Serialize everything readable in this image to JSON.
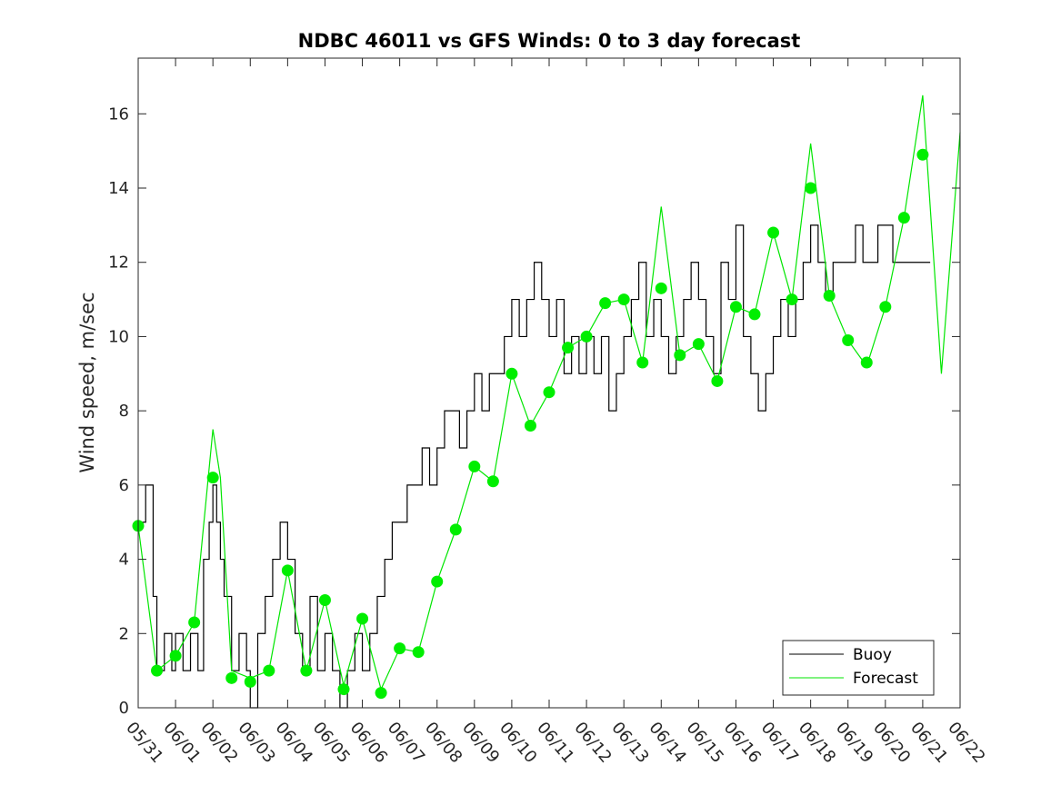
{
  "chart_data": {
    "type": "line",
    "title": "NDBC 46011 vs GFS Winds: 0 to 3 day forecast",
    "xlabel": "",
    "ylabel": "Wind speed, m/sec",
    "x_tick_labels": [
      "05/31",
      "06/01",
      "06/02",
      "06/03",
      "06/04",
      "06/05",
      "06/06",
      "06/07",
      "06/08",
      "06/09",
      "06/10",
      "06/11",
      "06/12",
      "06/13",
      "06/14",
      "06/15",
      "06/16",
      "06/17",
      "06/18",
      "06/19",
      "06/20",
      "06/21",
      "06/22"
    ],
    "y_ticks": [
      0,
      2,
      4,
      6,
      8,
      10,
      12,
      14,
      16
    ],
    "xlim": [
      0,
      22
    ],
    "ylim": [
      0,
      17.5
    ],
    "grid": false,
    "legend": {
      "position": "bottom-right",
      "entries": [
        {
          "label": "Buoy",
          "color": "#000000"
        },
        {
          "label": "Forecast",
          "color": "#00e600"
        }
      ]
    },
    "colors": {
      "buoy": "#000000",
      "forecast": "#00e600",
      "marker": "#00ee00"
    },
    "series": [
      {
        "name": "Buoy",
        "x": [
          0.0,
          0.2,
          0.4,
          0.5,
          0.7,
          0.9,
          1.0,
          1.2,
          1.4,
          1.6,
          1.75,
          1.9,
          2.0,
          2.1,
          2.2,
          2.3,
          2.5,
          2.7,
          2.9,
          3.0,
          3.2,
          3.4,
          3.6,
          3.8,
          4.0,
          4.2,
          4.4,
          4.6,
          4.8,
          5.0,
          5.2,
          5.4,
          5.6,
          5.8,
          6.0,
          6.2,
          6.4,
          6.6,
          6.8,
          7.0,
          7.2,
          7.4,
          7.6,
          7.8,
          8.0,
          8.2,
          8.4,
          8.6,
          8.8,
          9.0,
          9.2,
          9.4,
          9.6,
          9.8,
          10.0,
          10.2,
          10.4,
          10.6,
          10.8,
          11.0,
          11.2,
          11.4,
          11.6,
          11.8,
          12.0,
          12.2,
          12.4,
          12.6,
          12.8,
          13.0,
          13.2,
          13.4,
          13.6,
          13.8,
          14.0,
          14.2,
          14.4,
          14.6,
          14.8,
          15.0,
          15.2,
          15.4,
          15.6,
          15.8,
          16.0,
          16.2,
          16.4,
          16.6,
          16.8,
          17.0,
          17.2,
          17.4,
          17.6,
          17.8,
          18.0,
          18.2,
          18.4,
          18.6,
          18.8,
          19.0,
          19.2,
          19.4,
          19.6,
          19.8,
          20.0,
          20.2,
          20.4,
          20.6,
          20.8,
          21.0
        ],
        "values": [
          5,
          6,
          3,
          1,
          2,
          1,
          2,
          1,
          2,
          1,
          4,
          5,
          6,
          5,
          4,
          3,
          1,
          2,
          1,
          0,
          2,
          3,
          4,
          5,
          4,
          2,
          1,
          3,
          1,
          2,
          1,
          0,
          1,
          2,
          1,
          2,
          3,
          4,
          5,
          5,
          6,
          6,
          7,
          6,
          7,
          8,
          8,
          7,
          8,
          9,
          8,
          9,
          9,
          10,
          11,
          10,
          11,
          12,
          11,
          10,
          11,
          9,
          10,
          9,
          10,
          9,
          10,
          8,
          9,
          10,
          11,
          12,
          10,
          11,
          10,
          9,
          10,
          11,
          12,
          11,
          10,
          9,
          12,
          11,
          13,
          10,
          9,
          8,
          9,
          10,
          11,
          10,
          11,
          12,
          13,
          12,
          11,
          12,
          12,
          12,
          13,
          12,
          12,
          13,
          13,
          12,
          12,
          12,
          12,
          12
        ]
      },
      {
        "name": "Forecast",
        "x": [
          0.0,
          0.5,
          1.0,
          1.5,
          2.0,
          2.2,
          2.5,
          3.0,
          3.5,
          4.0,
          4.5,
          5.0,
          5.5,
          6.0,
          6.5,
          7.0,
          7.5,
          8.0,
          8.5,
          9.0,
          9.5,
          10.0,
          10.5,
          11.0,
          11.5,
          12.0,
          12.5,
          13.0,
          13.5,
          14.0,
          14.5,
          15.0,
          15.5,
          16.0,
          16.5,
          17.0,
          17.5,
          18.0,
          18.5,
          19.0,
          19.5,
          20.0,
          20.5,
          21.0,
          21.5,
          22.0
        ],
        "values": [
          4.9,
          1.0,
          1.4,
          2.3,
          7.5,
          6.2,
          1.0,
          0.8,
          1.0,
          3.7,
          1.0,
          2.9,
          0.6,
          2.4,
          0.5,
          1.6,
          1.5,
          3.4,
          4.8,
          6.5,
          6.1,
          9.0,
          7.6,
          8.5,
          9.7,
          10.0,
          10.9,
          11.0,
          9.3,
          13.5,
          9.5,
          9.8,
          8.8,
          10.8,
          10.6,
          12.8,
          11.0,
          15.2,
          11.1,
          9.9,
          9.2,
          10.8,
          13.2,
          16.5,
          9.0,
          15.5
        ]
      },
      {
        "name": "Forecast markers",
        "x": [
          0.0,
          0.5,
          1.0,
          1.5,
          2.0,
          2.5,
          3.0,
          3.5,
          4.0,
          4.5,
          5.0,
          5.5,
          6.0,
          6.5,
          7.0,
          7.5,
          8.0,
          8.5,
          9.0,
          9.5,
          10.0,
          10.5,
          11.0,
          11.5,
          12.0,
          12.5,
          13.0,
          13.5,
          14.0,
          14.5,
          15.0,
          15.5,
          16.0,
          16.5,
          17.0,
          17.5,
          18.0,
          18.5,
          19.0,
          19.5,
          20.0,
          20.5,
          21.0
        ],
        "values": [
          4.9,
          1.0,
          1.4,
          2.3,
          6.2,
          0.8,
          0.7,
          1.0,
          3.7,
          1.0,
          2.9,
          0.5,
          2.4,
          0.4,
          1.6,
          1.5,
          3.4,
          4.8,
          6.5,
          6.1,
          9.0,
          7.6,
          8.5,
          9.7,
          10.0,
          10.9,
          11.0,
          9.3,
          11.3,
          9.5,
          9.8,
          8.8,
          10.8,
          10.6,
          12.8,
          11.0,
          14.0,
          11.1,
          9.9,
          9.3,
          10.8,
          13.2,
          14.9
        ]
      }
    ]
  }
}
